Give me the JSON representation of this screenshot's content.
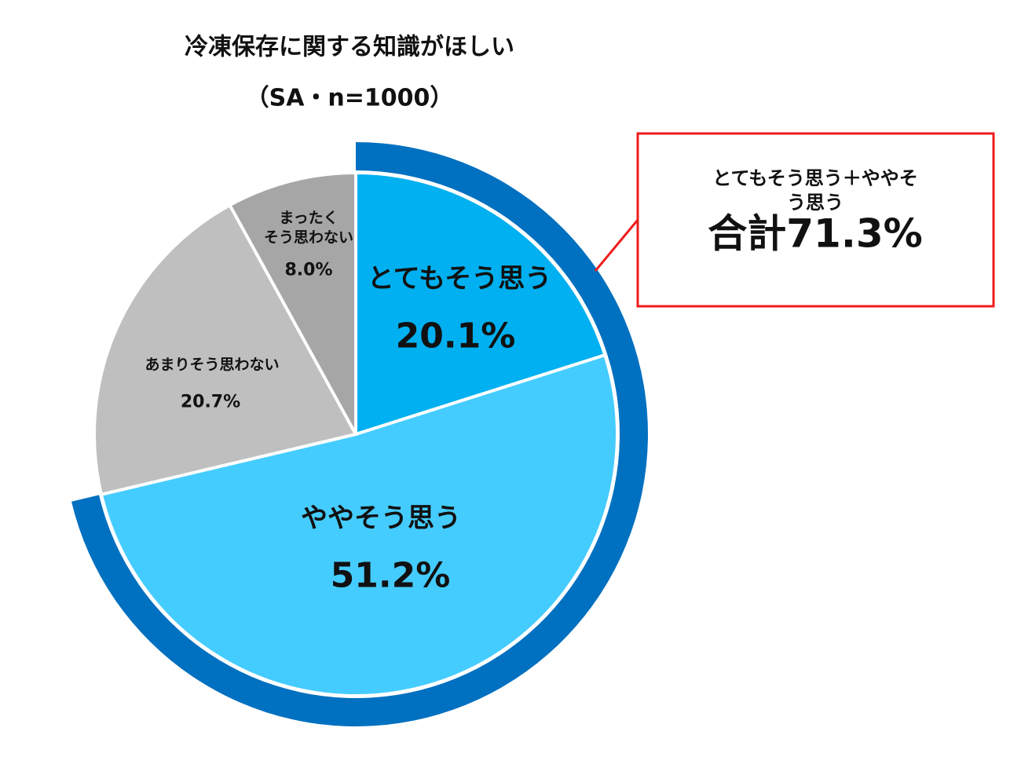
{
  "chart_data": {
    "type": "pie",
    "title": "冷凍保存に関する知識がほしい",
    "subtitle": "（SA・n=1000）",
    "categories": [
      "とてもそう思う",
      "ややそう思う",
      "あまりそう思わない",
      "まったく\nそう思わない"
    ],
    "values": [
      20.1,
      51.2,
      20.7,
      8.0
    ],
    "value_labels": [
      "20.1%",
      "51.2%",
      "20.7%",
      "8.0%"
    ],
    "colors": [
      "#00b0f0",
      "#45ccff",
      "#bfbfbf",
      "#a6a6a6"
    ],
    "highlight_color": "#0070c0",
    "annotation": {
      "title": "とてもそう思う＋ややそう思う",
      "text": "合計71.3%",
      "color": "#ee1c1c"
    }
  }
}
